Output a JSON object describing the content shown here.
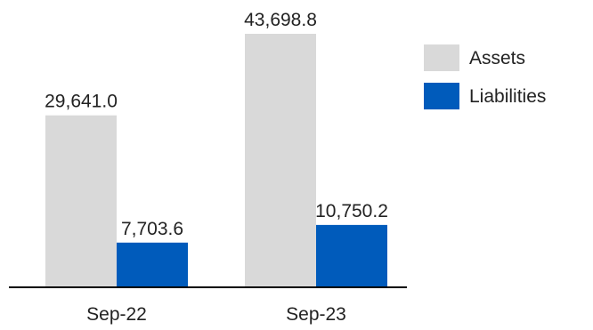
{
  "chart_data": {
    "type": "bar",
    "title": "",
    "xlabel": "",
    "ylabel": "",
    "categories": [
      "Sep-22",
      "Sep-23"
    ],
    "series": [
      {
        "name": "Assets",
        "values": [
          29641.0,
          43698.8
        ],
        "labels": [
          "29,641.0",
          "43,698.8"
        ],
        "color": "#d9d9d9"
      },
      {
        "name": "Liabilities",
        "values": [
          7703.6,
          10750.2
        ],
        "labels": [
          "7,703.6",
          "10,750.2"
        ],
        "color": "#005bbb"
      }
    ],
    "ylim": [
      0,
      43698.8
    ],
    "grid": false,
    "legend_position": "right"
  },
  "colors": {
    "axis": "#000000",
    "text": "#222222"
  }
}
